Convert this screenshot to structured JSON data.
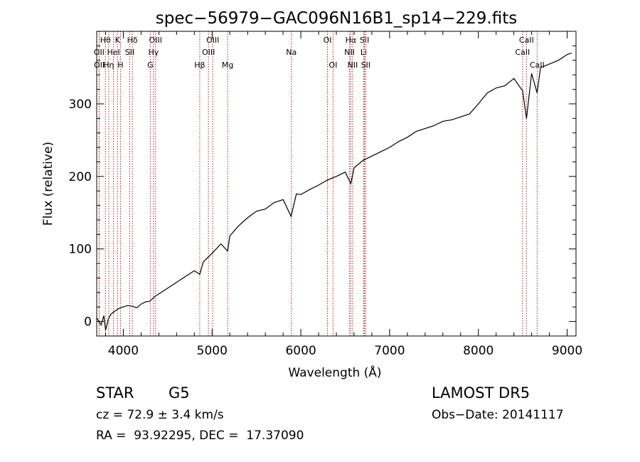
{
  "chart_data": {
    "type": "line",
    "title": "spec−56979−GAC096N16B1_sp14−229.fits",
    "xlabel": "Wavelength (Å)",
    "ylabel": "Flux (relative)",
    "xlim": [
      3700,
      9100
    ],
    "ylim": [
      -20,
      400
    ],
    "x_ticks": [
      4000,
      5000,
      6000,
      7000,
      8000,
      9000
    ],
    "y_ticks": [
      0,
      100,
      200,
      300
    ],
    "grid": false,
    "colors": {
      "spectrum": "#000000",
      "lines": "#b02020"
    },
    "series": [
      {
        "x": [
          3700,
          3750,
          3780,
          3800,
          3830,
          3860,
          3900,
          3950,
          4000,
          4050,
          4100,
          4150,
          4200,
          4250,
          4300,
          4350,
          4400,
          4500,
          4600,
          4700,
          4800,
          4861,
          4900,
          5000,
          5100,
          5175,
          5200,
          5300,
          5400,
          5500,
          5600,
          5700,
          5800,
          5890,
          5950,
          6000,
          6100,
          6200,
          6300,
          6400,
          6500,
          6563,
          6600,
          6700,
          6800,
          6900,
          7000,
          7100,
          7200,
          7300,
          7400,
          7500,
          7600,
          7700,
          7800,
          7900,
          8000,
          8100,
          8200,
          8300,
          8400,
          8498,
          8542,
          8600,
          8662,
          8700,
          8800,
          8900,
          8950,
          9000,
          9050
        ],
        "y": [
          5,
          -5,
          8,
          -12,
          3,
          10,
          14,
          18,
          20,
          22,
          21,
          19,
          24,
          27,
          28,
          34,
          38,
          46,
          54,
          62,
          70,
          65,
          82,
          94,
          107,
          97,
          118,
          132,
          143,
          152,
          155,
          164,
          168,
          145,
          176,
          175,
          182,
          188,
          195,
          200,
          206,
          190,
          212,
          222,
          228,
          234,
          240,
          248,
          254,
          262,
          266,
          270,
          276,
          278,
          282,
          286,
          300,
          315,
          322,
          325,
          335,
          318,
          280,
          342,
          315,
          350,
          355,
          360,
          364,
          368,
          370
        ]
      }
    ],
    "spectral_lines": [
      {
        "label": "Hθ",
        "x": 3798,
        "row": 0
      },
      {
        "label": "K",
        "x": 3934,
        "row": 0
      },
      {
        "label": "Hδ",
        "x": 4102,
        "row": 0
      },
      {
        "label": "OIII",
        "x": 4363,
        "row": 0
      },
      {
        "label": "OIII",
        "x": 5007,
        "row": 0
      },
      {
        "label": "OI",
        "x": 6300,
        "row": 0
      },
      {
        "label": "Hα",
        "x": 6563,
        "row": 0
      },
      {
        "label": "SII",
        "x": 6717,
        "row": 0
      },
      {
        "label": "CaII",
        "x": 8542,
        "row": 0
      },
      {
        "label": "OII",
        "x": 3727,
        "row": 1
      },
      {
        "label": "HeI",
        "x": 3889,
        "row": 1
      },
      {
        "label": "SII",
        "x": 4072,
        "row": 1
      },
      {
        "label": "Hγ",
        "x": 4340,
        "row": 1
      },
      {
        "label": "OIII",
        "x": 4959,
        "row": 1
      },
      {
        "label": "Na",
        "x": 5893,
        "row": 1
      },
      {
        "label": "NII",
        "x": 6548,
        "row": 1
      },
      {
        "label": "Li",
        "x": 6708,
        "row": 1
      },
      {
        "label": "CaII",
        "x": 8498,
        "row": 1
      },
      {
        "label": "OII",
        "x": 3729,
        "row": 2
      },
      {
        "label": "Hη",
        "x": 3835,
        "row": 2
      },
      {
        "label": "H",
        "x": 3968,
        "row": 2
      },
      {
        "label": "G",
        "x": 4304,
        "row": 2
      },
      {
        "label": "Hβ",
        "x": 4861,
        "row": 2
      },
      {
        "label": "Mg",
        "x": 5175,
        "row": 2
      },
      {
        "label": "OI",
        "x": 6363,
        "row": 2
      },
      {
        "label": "NII",
        "x": 6583,
        "row": 2
      },
      {
        "label": "SII",
        "x": 6731,
        "row": 2
      },
      {
        "label": "CaII",
        "x": 8662,
        "row": 2
      }
    ]
  },
  "info": {
    "object_class": "STAR",
    "subclass": "G5",
    "survey": "LAMOST DR5",
    "redshift_line": "cz = 72.9 ± 3.4 km/s",
    "obs_date": "Obs−Date: 20141117",
    "coords": "RA =  93.92295, DEC =  17.37090"
  }
}
